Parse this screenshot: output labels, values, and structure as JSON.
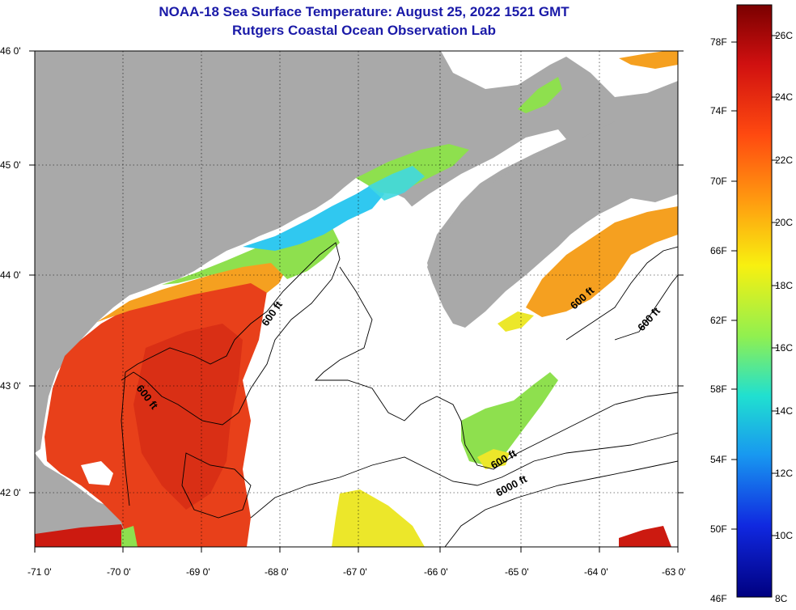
{
  "title_line1": "NOAA-18 Sea Surface Temperature:  August 25, 2022 1521 GMT",
  "title_line2": "Rutgers Coastal Ocean Observation Lab",
  "lat_labels": [
    "46 0'",
    "45 0'",
    "44 0'",
    "43 0'",
    "42 0'"
  ],
  "lon_labels": [
    "-71 0'",
    "-70 0'",
    "-69 0'",
    "-68 0'",
    "-67 0'",
    "-66 0'",
    "-65 0'",
    "-64 0'",
    "-63 0'"
  ],
  "contour_labels": [
    "600 ft",
    "600 ft",
    "600 ft",
    "600 ft",
    "600 ft",
    "6000 ft"
  ],
  "colorbar": {
    "fahrenheit": [
      "78F",
      "74F",
      "70F",
      "66F",
      "62F",
      "58F",
      "54F",
      "50F",
      "46F"
    ],
    "celsius": [
      "26C",
      "24C",
      "22C",
      "20C",
      "18C",
      "16C",
      "14C",
      "12C",
      "10C",
      "8C"
    ]
  },
  "colors": {
    "title": "#1a1aa8",
    "land": "#a9a9a9",
    "cloud": "#ffffff",
    "warm": "#e8401a",
    "hot": "#d21a14",
    "orange": "#f5a020",
    "yellow": "#ece72a",
    "green": "#8ee04e",
    "cyan": "#30c8f0"
  }
}
